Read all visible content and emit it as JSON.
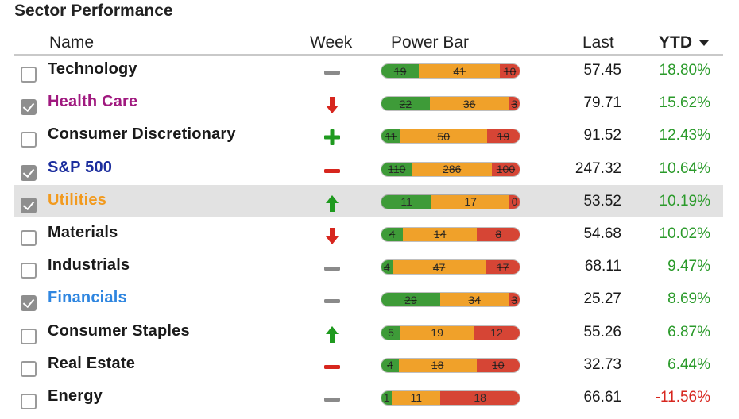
{
  "title": "Sector Performance",
  "columns": {
    "name": "Name",
    "week": "Week",
    "power_bar": "Power Bar",
    "last": "Last",
    "ytd": "YTD"
  },
  "colors": {
    "positive": "#2a9a2a",
    "negative": "#d7261e",
    "power_green": "#3e9b38",
    "power_orange": "#f0a12a",
    "power_red": "#d64535",
    "week_up": "#1f9a1f",
    "week_down": "#d7261e",
    "week_flat": "#8a8a8a"
  },
  "rows": [
    {
      "name": "Technology",
      "name_color": "#1a1a1a",
      "checked": false,
      "highlight": false,
      "week_icon": "dash-icon",
      "power": [
        19,
        41,
        10
      ],
      "last": "57.45",
      "ytd": "18.80%",
      "ytd_color": "#2a9a2a"
    },
    {
      "name": "Health Care",
      "name_color": "#a0197f",
      "checked": true,
      "highlight": false,
      "week_icon": "arrow-down-icon",
      "power": [
        22,
        36,
        3
      ],
      "last": "79.71",
      "ytd": "15.62%",
      "ytd_color": "#2a9a2a"
    },
    {
      "name": "Consumer Discretionary",
      "name_color": "#1a1a1a",
      "checked": false,
      "highlight": false,
      "week_icon": "plus-icon",
      "power": [
        11,
        50,
        19
      ],
      "last": "91.52",
      "ytd": "12.43%",
      "ytd_color": "#2a9a2a"
    },
    {
      "name": "S&P 500",
      "name_color": "#1c2e9e",
      "checked": true,
      "highlight": false,
      "week_icon": "minus-red-icon",
      "power": [
        110,
        286,
        100
      ],
      "last": "247.32",
      "ytd": "10.64%",
      "ytd_color": "#2a9a2a"
    },
    {
      "name": "Utilities",
      "name_color": "#f29a1e",
      "checked": true,
      "highlight": true,
      "week_icon": "arrow-up-icon",
      "power": [
        11,
        17,
        0
      ],
      "last": "53.52",
      "ytd": "10.19%",
      "ytd_color": "#2a9a2a"
    },
    {
      "name": "Materials",
      "name_color": "#1a1a1a",
      "checked": false,
      "highlight": false,
      "week_icon": "arrow-down-icon",
      "power": [
        4,
        14,
        8
      ],
      "last": "54.68",
      "ytd": "10.02%",
      "ytd_color": "#2a9a2a"
    },
    {
      "name": "Industrials",
      "name_color": "#1a1a1a",
      "checked": false,
      "highlight": false,
      "week_icon": "dash-icon",
      "power": [
        4,
        47,
        17
      ],
      "last": "68.11",
      "ytd": "9.47%",
      "ytd_color": "#2a9a2a"
    },
    {
      "name": "Financials",
      "name_color": "#2f86e0",
      "checked": true,
      "highlight": false,
      "week_icon": "dash-icon",
      "power": [
        29,
        34,
        3
      ],
      "last": "25.27",
      "ytd": "8.69%",
      "ytd_color": "#2a9a2a"
    },
    {
      "name": "Consumer Staples",
      "name_color": "#1a1a1a",
      "checked": false,
      "highlight": false,
      "week_icon": "arrow-up-icon",
      "power": [
        5,
        19,
        12
      ],
      "last": "55.26",
      "ytd": "6.87%",
      "ytd_color": "#2a9a2a"
    },
    {
      "name": "Real Estate",
      "name_color": "#1a1a1a",
      "checked": false,
      "highlight": false,
      "week_icon": "minus-red-icon",
      "power": [
        4,
        18,
        10
      ],
      "last": "32.73",
      "ytd": "6.44%",
      "ytd_color": "#2a9a2a"
    },
    {
      "name": "Energy",
      "name_color": "#1a1a1a",
      "checked": false,
      "highlight": false,
      "week_icon": "dash-icon",
      "power": [
        1,
        11,
        18
      ],
      "last": "66.61",
      "ytd": "-11.56%",
      "ytd_color": "#d7261e"
    }
  ]
}
